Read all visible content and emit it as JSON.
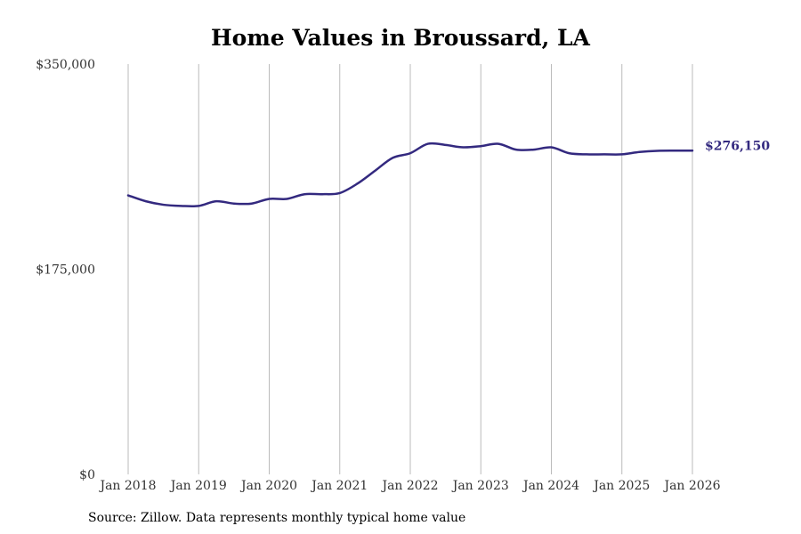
{
  "chart_data": {
    "type": "line",
    "title": "Home Values in Broussard, LA",
    "source": "Source: Zillow. Data represents monthly typical home value",
    "xlabel": "",
    "ylabel": "",
    "ylim": [
      0,
      350000
    ],
    "y_ticks": [
      0,
      175000,
      350000
    ],
    "y_tick_labels": [
      "$0",
      "$175,000",
      "$350,000"
    ],
    "x_ticks": [
      2018,
      2019,
      2020,
      2021,
      2022,
      2023,
      2024,
      2025,
      2026
    ],
    "x_tick_labels": [
      "Jan 2018",
      "Jan 2019",
      "Jan 2020",
      "Jan 2021",
      "Jan 2022",
      "Jan 2023",
      "Jan 2024",
      "Jan 2025",
      "Jan 2026"
    ],
    "xlim": [
      2018,
      2026
    ],
    "grid": "vertical",
    "line_color": "#33297f",
    "end_label": "$276,150",
    "series": [
      {
        "name": "Home Value",
        "x": [
          2018.0,
          2018.25,
          2018.5,
          2018.75,
          2019.0,
          2019.25,
          2019.5,
          2019.75,
          2020.0,
          2020.25,
          2020.5,
          2020.75,
          2021.0,
          2021.25,
          2021.5,
          2021.75,
          2022.0,
          2022.25,
          2022.5,
          2022.75,
          2023.0,
          2023.25,
          2023.5,
          2023.75,
          2024.0,
          2024.25,
          2024.5,
          2024.75,
          2025.0,
          2025.25,
          2025.5,
          2025.75,
          2026.0
        ],
        "values": [
          238000,
          233000,
          230000,
          229000,
          229000,
          233000,
          231000,
          231000,
          235000,
          235000,
          239000,
          239000,
          240000,
          248000,
          259000,
          270000,
          274000,
          282000,
          281000,
          279000,
          280000,
          282000,
          277000,
          277000,
          279000,
          274000,
          273000,
          273000,
          273000,
          275000,
          276000,
          276150,
          276150
        ]
      }
    ]
  }
}
